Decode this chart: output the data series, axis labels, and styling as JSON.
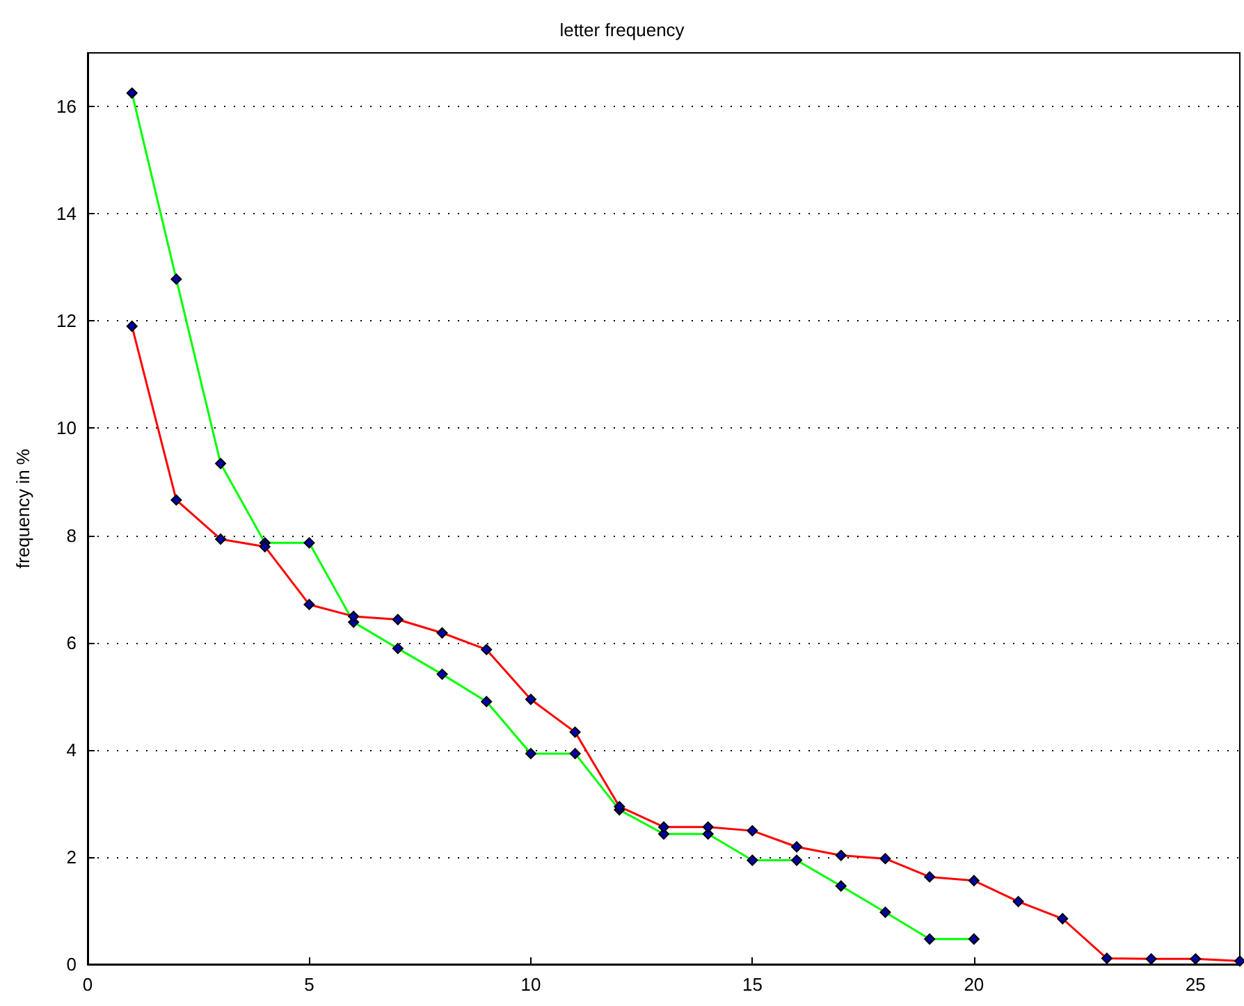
{
  "chart_data": {
    "type": "line",
    "title": "letter frequency",
    "ylabel": "frequency in %",
    "x": [
      1,
      2,
      3,
      4,
      5,
      6,
      7,
      8,
      9,
      10,
      11,
      12,
      13,
      14,
      15,
      16,
      17,
      18,
      19,
      20,
      21,
      22,
      23,
      24,
      25,
      26
    ],
    "series": [
      {
        "color": "#00ff00",
        "x": [
          1,
          2,
          3,
          4,
          5,
          6,
          7,
          8,
          9,
          10,
          11,
          12,
          13,
          14,
          15,
          16,
          17,
          18,
          19,
          20
        ],
        "values": [
          16.25,
          12.78,
          9.34,
          7.86,
          7.86,
          6.38,
          5.89,
          5.41,
          4.9,
          3.93,
          3.93,
          2.88,
          2.43,
          2.43,
          1.94,
          1.94,
          1.46,
          0.97,
          0.47,
          0.47
        ]
      },
      {
        "color": "#ff0000",
        "values": [
          11.9,
          8.66,
          7.93,
          7.79,
          6.71,
          6.49,
          6.43,
          6.18,
          5.87,
          4.94,
          4.33,
          2.94,
          2.56,
          2.56,
          2.49,
          2.19,
          2.03,
          1.97,
          1.63,
          1.56,
          1.17,
          0.85,
          0.11,
          0.1,
          0.1,
          0.06
        ]
      }
    ],
    "xlim": [
      0,
      26
    ],
    "xticks": [
      0,
      5,
      10,
      15,
      20,
      25
    ],
    "ylim": [
      0,
      17
    ],
    "yticks": [
      0,
      2,
      4,
      6,
      8,
      10,
      12,
      14,
      16
    ],
    "grid": "y",
    "marker": "diamond",
    "line_style": "solid"
  }
}
